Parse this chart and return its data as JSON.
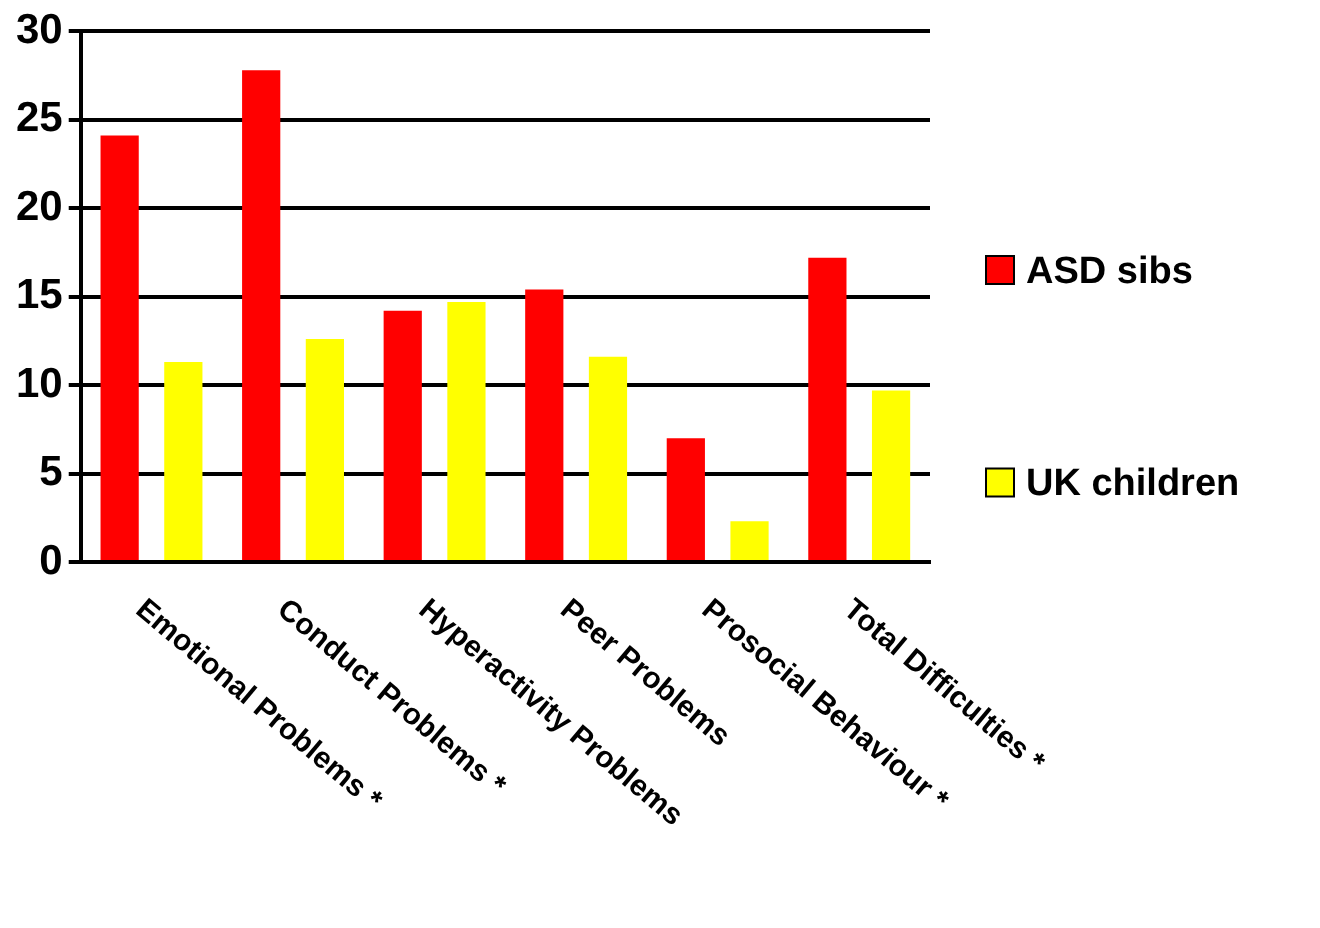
{
  "chart_data": {
    "type": "bar",
    "categories": [
      "Emotional Problems *",
      "Conduct Problems *",
      "Hyperactivity Problems",
      "Peer Problems",
      "Prosocial Behaviour *",
      "Total Difficulties *"
    ],
    "series": [
      {
        "name": "ASD sibs",
        "color": "#ff0000",
        "values": [
          24.1,
          27.8,
          14.2,
          15.4,
          7.0,
          17.2
        ]
      },
      {
        "name": "UK children",
        "color": "#ffff00",
        "values": [
          11.3,
          12.6,
          14.7,
          11.6,
          2.3,
          9.7
        ]
      }
    ],
    "ylim": [
      0,
      30
    ],
    "yticks": [
      0,
      5,
      10,
      15,
      20,
      25,
      30
    ],
    "grid": "y",
    "legend": "right"
  }
}
